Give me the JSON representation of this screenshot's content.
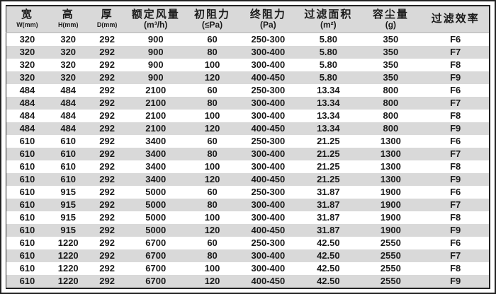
{
  "table": {
    "columns": [
      {
        "label": "宽",
        "sub": "W(mm)"
      },
      {
        "label": "高",
        "sub": "H(mm)"
      },
      {
        "label": "厚",
        "sub": "D(mm)"
      },
      {
        "label": "额定风量",
        "sub": "(m³/h)"
      },
      {
        "label": "初阻力",
        "sub": "(≤Pa)"
      },
      {
        "label": "终阻力",
        "sub": "(Pa)"
      },
      {
        "label": "过滤面积",
        "sub": "(m²)"
      },
      {
        "label": "容尘量",
        "sub": "(g)"
      },
      {
        "label": "过滤效率",
        "sub": ""
      }
    ],
    "rows": [
      [
        "320",
        "320",
        "292",
        "900",
        "60",
        "250-300",
        "5.80",
        "350",
        "F6"
      ],
      [
        "320",
        "320",
        "292",
        "900",
        "80",
        "300-400",
        "5.80",
        "350",
        "F7"
      ],
      [
        "320",
        "320",
        "292",
        "900",
        "100",
        "300-400",
        "5.80",
        "350",
        "F8"
      ],
      [
        "320",
        "320",
        "292",
        "900",
        "120",
        "400-450",
        "5.80",
        "350",
        "F9"
      ],
      [
        "484",
        "484",
        "292",
        "2100",
        "60",
        "250-300",
        "13.34",
        "800",
        "F6"
      ],
      [
        "484",
        "484",
        "292",
        "2100",
        "80",
        "300-400",
        "13.34",
        "800",
        "F7"
      ],
      [
        "484",
        "484",
        "292",
        "2100",
        "100",
        "300-400",
        "13.34",
        "800",
        "F8"
      ],
      [
        "484",
        "484",
        "292",
        "2100",
        "120",
        "400-450",
        "13.34",
        "800",
        "F9"
      ],
      [
        "610",
        "610",
        "292",
        "3400",
        "60",
        "250-300",
        "21.25",
        "1300",
        "F6"
      ],
      [
        "610",
        "610",
        "292",
        "3400",
        "80",
        "300-400",
        "21.25",
        "1300",
        "F7"
      ],
      [
        "610",
        "610",
        "292",
        "3400",
        "100",
        "300-400",
        "21.25",
        "1300",
        "F8"
      ],
      [
        "610",
        "610",
        "292",
        "3400",
        "120",
        "400-450",
        "21.25",
        "1300",
        "F9"
      ],
      [
        "610",
        "915",
        "292",
        "5000",
        "60",
        "250-300",
        "31.87",
        "1900",
        "F6"
      ],
      [
        "610",
        "915",
        "292",
        "5000",
        "80",
        "300-400",
        "31.87",
        "1900",
        "F7"
      ],
      [
        "610",
        "915",
        "292",
        "5000",
        "100",
        "300-400",
        "31.87",
        "1900",
        "F8"
      ],
      [
        "610",
        "915",
        "292",
        "5000",
        "120",
        "400-450",
        "31.87",
        "1900",
        "F9"
      ],
      [
        "610",
        "1220",
        "292",
        "6700",
        "60",
        "250-300",
        "42.50",
        "2550",
        "F6"
      ],
      [
        "610",
        "1220",
        "292",
        "6700",
        "80",
        "300-400",
        "42.50",
        "2550",
        "F7"
      ],
      [
        "610",
        "1220",
        "292",
        "6700",
        "100",
        "300-400",
        "42.50",
        "2550",
        "F8"
      ],
      [
        "610",
        "1220",
        "292",
        "6700",
        "120",
        "400-450",
        "42.50",
        "2550",
        "F9"
      ]
    ],
    "column_widths_pct": [
      8.7,
      8.3,
      7.8,
      12.3,
      11.1,
      12.0,
      12.9,
      12.9,
      14.0
    ]
  },
  "colors": {
    "stripe": "#d9d9d9",
    "header_bg": "#d9d9d9",
    "frame": "#222222",
    "text": "#1a1a1a"
  }
}
